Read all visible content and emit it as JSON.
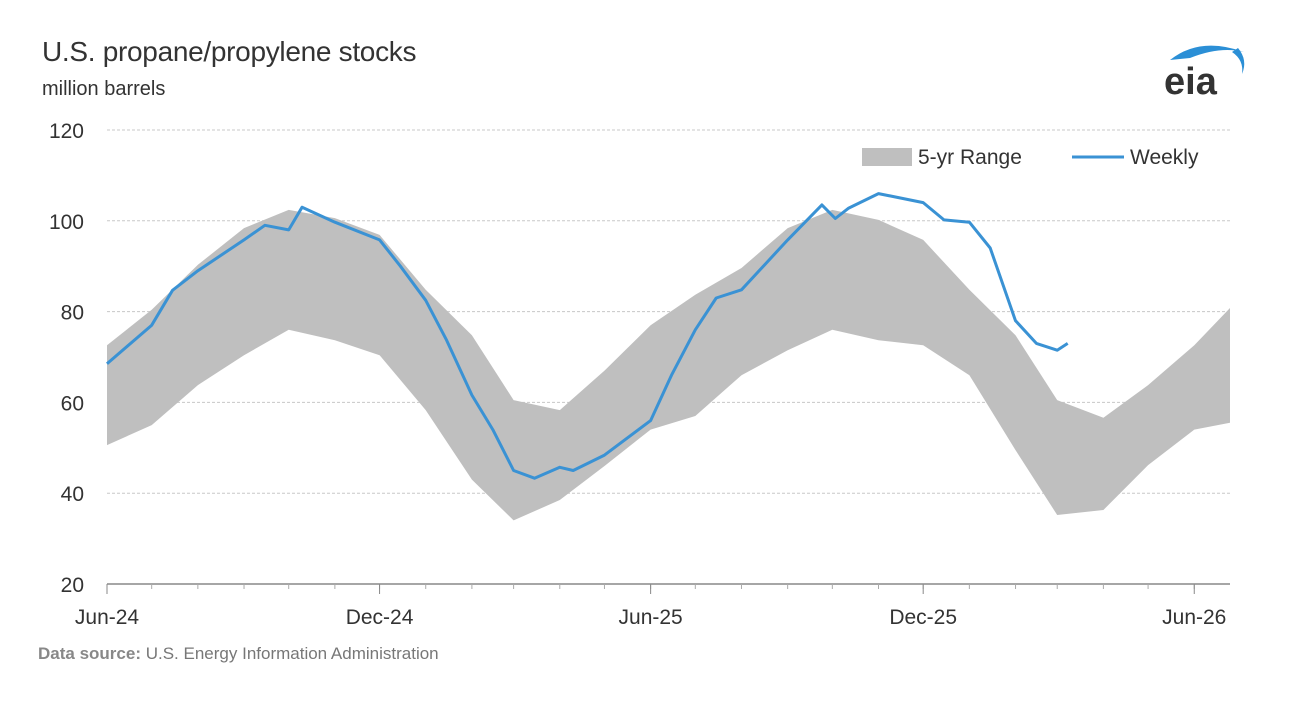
{
  "header": {
    "title": "U.S. propane/propylene stocks",
    "subtitle": "million barrels"
  },
  "footer": {
    "source_label": "Data source:",
    "source_text": "U.S. Energy Information Administration"
  },
  "logo": {
    "text": "eia"
  },
  "colors": {
    "range": "#bfbfbf",
    "weekly": "#3a92d4",
    "grid": "#c8c8c8",
    "text": "#333333"
  },
  "chart_data": {
    "type": "area",
    "title": "U.S. propane/propylene stocks",
    "ylabel": "million barrels",
    "ylim": [
      20,
      120
    ],
    "yticks": [
      20,
      40,
      60,
      80,
      100,
      120
    ],
    "xlim": [
      "2024-06-01",
      "2026-06-25"
    ],
    "xticks": [
      {
        "date": "2024-06-01",
        "label": "Jun-24"
      },
      {
        "date": "2024-12-01",
        "label": "Dec-24"
      },
      {
        "date": "2025-06-01",
        "label": "Jun-25"
      },
      {
        "date": "2025-12-01",
        "label": "Dec-25"
      },
      {
        "date": "2026-06-01",
        "label": "Jun-26"
      }
    ],
    "grid": true,
    "legend": {
      "placement": "top-right",
      "entries": [
        "5-yr Range",
        "Weekly"
      ]
    },
    "range": {
      "name": "5-yr Range",
      "x": [
        "2024-06-01",
        "2024-07-01",
        "2024-08-01",
        "2024-09-01",
        "2024-10-01",
        "2024-11-01",
        "2024-12-01",
        "2025-01-01",
        "2025-02-01",
        "2025-03-01",
        "2025-04-01",
        "2025-05-01",
        "2025-06-01",
        "2025-07-01",
        "2025-08-01",
        "2025-09-01",
        "2025-10-01",
        "2025-11-01",
        "2025-12-01",
        "2026-01-01",
        "2026-02-01",
        "2026-03-01",
        "2026-04-01",
        "2026-05-01",
        "2026-06-01",
        "2026-06-25"
      ],
      "upper": [
        72.6,
        80.4,
        90.3,
        98.4,
        102.4,
        100.6,
        96.9,
        84.8,
        74.8,
        60.5,
        58.3,
        67,
        77,
        83.7,
        89.6,
        98.4,
        102.4,
        100.2,
        95.8,
        84.8,
        74.8,
        60.5,
        56.6,
        63.8,
        72.6,
        80.8
      ],
      "lower": [
        50.6,
        55,
        63.8,
        70.4,
        76,
        73.7,
        70.4,
        58.3,
        43,
        34,
        38.5,
        46,
        54,
        57,
        66,
        71.5,
        76,
        73.7,
        72.6,
        66,
        49.5,
        35.2,
        36.3,
        46.2,
        54,
        55.5
      ]
    },
    "series": [
      {
        "name": "Weekly",
        "x": [
          "2024-06-01",
          "2024-07-01",
          "2024-07-15",
          "2024-08-01",
          "2024-09-01",
          "2024-09-15",
          "2024-10-01",
          "2024-10-10",
          "2024-11-01",
          "2024-12-01",
          "2024-12-15",
          "2025-01-01",
          "2025-01-15",
          "2025-02-01",
          "2025-02-15",
          "2025-03-01",
          "2025-03-15",
          "2025-04-01",
          "2025-04-10",
          "2025-05-01",
          "2025-06-01",
          "2025-06-15",
          "2025-07-01",
          "2025-07-15",
          "2025-08-01",
          "2025-09-01",
          "2025-09-24",
          "2025-10-03",
          "2025-10-12",
          "2025-11-01",
          "2025-12-01",
          "2025-12-15",
          "2026-01-01",
          "2026-01-15",
          "2026-02-01",
          "2026-02-15",
          "2026-03-01",
          "2026-03-08"
        ],
        "values": [
          68.5,
          77,
          84.7,
          89,
          95.8,
          99,
          98,
          103,
          99.7,
          95.8,
          90,
          82.5,
          73.7,
          61.6,
          54,
          45,
          43.3,
          45.7,
          45,
          48.4,
          56,
          66,
          76,
          83,
          84.8,
          95.8,
          103.5,
          100.5,
          102.8,
          106,
          104,
          100.2,
          99.7,
          94,
          78,
          73,
          71.5,
          73
        ]
      }
    ]
  }
}
